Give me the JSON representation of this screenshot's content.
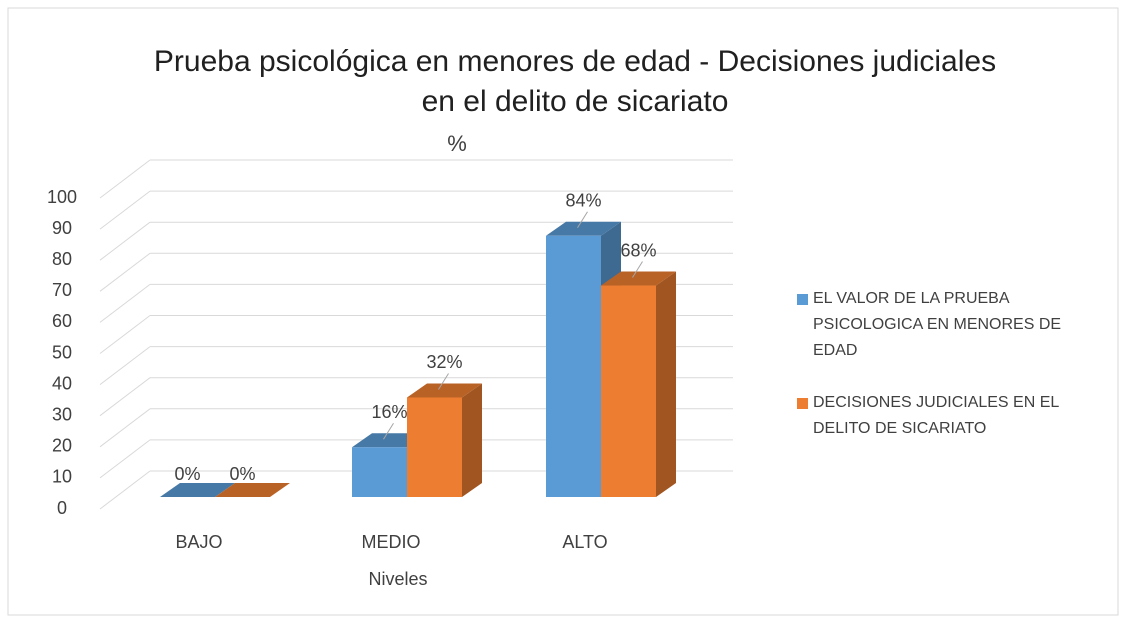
{
  "chart_data": {
    "type": "bar3d",
    "title": "Prueba psicológica en menores de edad - Decisiones judiciales en el delito de sicariato",
    "y_label": "%",
    "x_label": "Niveles",
    "categories": [
      "BAJO",
      "MEDIO",
      "ALTO"
    ],
    "series": [
      {
        "name": "EL VALOR DE LA PRUEBA PSICOLOGICA EN MENORES DE EDAD",
        "color": "#5b9bd5",
        "values": [
          0,
          16,
          84
        ],
        "value_labels": [
          "0%",
          "16%",
          "84%"
        ]
      },
      {
        "name": "DECISIONES JUDICIALES EN EL DELITO DE SICARIATO",
        "color": "#ed7d31",
        "values": [
          0,
          32,
          68
        ],
        "value_labels": [
          "0%",
          "32%",
          "68%"
        ]
      }
    ],
    "ylim": [
      0,
      100
    ],
    "yticks": [
      0,
      10,
      20,
      30,
      40,
      50,
      60,
      70,
      80,
      90,
      100
    ],
    "grid": true,
    "legend": "right"
  }
}
